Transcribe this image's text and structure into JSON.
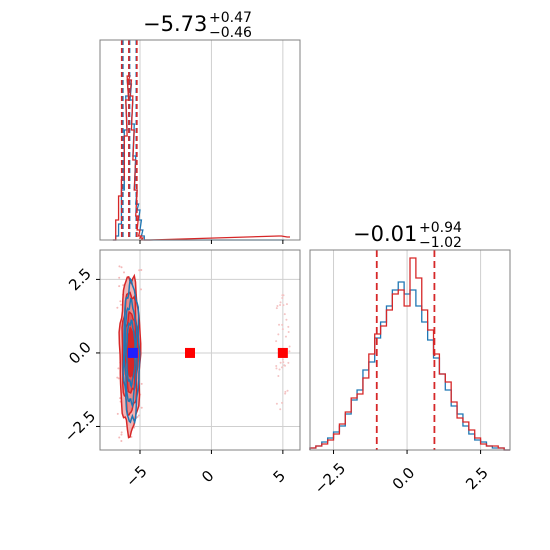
{
  "chart_data": [
    {
      "type": "histogram",
      "panel": "marginal-param-1",
      "title": {
        "median": "−5.73",
        "upper": "+0.47",
        "lower": "−0.46"
      },
      "xlim": [
        -7.8,
        6.2
      ],
      "ylim": [
        0,
        1
      ],
      "quantile_lines": {
        "blue": [
          -6.2,
          -5.73,
          -5.26
        ],
        "red": [
          -6.28,
          -5.78,
          -5.22
        ]
      },
      "series": [
        {
          "color": "#1f77b4",
          "x": [
            -6.8,
            -6.6,
            -6.4,
            -6.2,
            -6.0,
            -5.9,
            -5.8,
            -5.7,
            -5.6,
            -5.5,
            -5.4,
            -5.3,
            -5.2,
            -5.1,
            -5.0,
            -4.9,
            -4.8,
            -4.6,
            -4.4,
            5.0
          ],
          "counts": [
            0.0,
            0.02,
            0.08,
            0.25,
            0.55,
            0.72,
            0.8,
            0.78,
            0.7,
            0.58,
            0.42,
            0.25,
            0.18,
            0.15,
            0.1,
            0.05,
            0.02,
            0.0,
            0.0,
            0.0
          ]
        },
        {
          "color": "#d62728",
          "x": [
            -6.8,
            -6.6,
            -6.4,
            -6.2,
            -6.0,
            -5.9,
            -5.8,
            -5.7,
            -5.6,
            -5.5,
            -5.4,
            -5.3,
            -5.2,
            -5.1,
            -5.0,
            -4.9,
            -4.8,
            -4.6,
            -4.4,
            4.8,
            5.4
          ],
          "counts": [
            0.0,
            0.1,
            0.22,
            0.3,
            0.52,
            0.7,
            0.82,
            0.8,
            0.72,
            0.55,
            0.4,
            0.25,
            0.12,
            0.05,
            0.02,
            0.01,
            0.0,
            0.0,
            0.0,
            0.02,
            0.015
          ]
        }
      ]
    },
    {
      "type": "contour",
      "panel": "joint",
      "xlim": [
        -7.8,
        6.2
      ],
      "ylim": [
        -3.3,
        3.5
      ],
      "xticks": [
        -5,
        0,
        5
      ],
      "xtick_labels": [
        "−5",
        "0",
        "5"
      ],
      "yticks": [
        -2.5,
        0.0,
        2.5
      ],
      "ytick_labels": [
        "−2.5",
        "0.0",
        "2.5"
      ],
      "grid": true,
      "markers": [
        {
          "x": -5.5,
          "y": 0.0,
          "color": "#1f1fff"
        },
        {
          "x": -1.5,
          "y": 0.0,
          "color": "#ff0000"
        },
        {
          "x": 5.0,
          "y": 0.0,
          "color": "#ff0000"
        }
      ],
      "blue_contours": [
        {
          "cx": -5.6,
          "cy": 0.0,
          "rx": 0.55,
          "ry": 2.35
        },
        {
          "cx": -5.65,
          "cy": 0.0,
          "rx": 0.42,
          "ry": 1.7
        },
        {
          "cx": -5.65,
          "cy": 0.0,
          "rx": 0.3,
          "ry": 1.05
        }
      ],
      "red_contours": [
        {
          "cx": -5.7,
          "cy": -0.05,
          "rx": 0.72,
          "ry": 2.65,
          "fill": "#f2b5b5"
        },
        {
          "cx": -5.7,
          "cy": 0.0,
          "rx": 0.55,
          "ry": 2.05,
          "fill": "#e88c8c"
        },
        {
          "cx": -5.65,
          "cy": 0.0,
          "rx": 0.4,
          "ry": 1.35,
          "fill": "#df5a5a"
        },
        {
          "cx": -5.65,
          "cy": 0.0,
          "rx": 0.28,
          "ry": 0.8,
          "fill": "#d62728"
        }
      ]
    },
    {
      "type": "histogram",
      "panel": "marginal-param-2",
      "title": {
        "median": "−0.01",
        "upper": "+0.94",
        "lower": "−1.02"
      },
      "xlim": [
        -3.3,
        3.5
      ],
      "ylim": [
        0,
        1
      ],
      "xticks": [
        -2.5,
        0.0,
        2.5
      ],
      "xtick_labels": [
        "−2.5",
        "0.0",
        "2.5"
      ],
      "grid": true,
      "quantile_lines": {
        "red": [
          -1.03,
          0.93
        ]
      },
      "bins": [
        -3.3,
        -3.1,
        -2.9,
        -2.7,
        -2.5,
        -2.3,
        -2.1,
        -1.9,
        -1.7,
        -1.5,
        -1.3,
        -1.1,
        -0.9,
        -0.7,
        -0.5,
        -0.3,
        -0.1,
        0.1,
        0.3,
        0.5,
        0.7,
        0.9,
        1.1,
        1.3,
        1.5,
        1.7,
        1.9,
        2.1,
        2.3,
        2.5,
        2.7,
        2.9,
        3.1,
        3.3,
        3.5
      ],
      "series": [
        {
          "color": "#1f77b4",
          "counts": [
            0.01,
            0.02,
            0.04,
            0.06,
            0.09,
            0.12,
            0.18,
            0.25,
            0.3,
            0.4,
            0.44,
            0.56,
            0.64,
            0.72,
            0.8,
            0.84,
            0.78,
            0.8,
            0.72,
            0.64,
            0.55,
            0.46,
            0.38,
            0.3,
            0.22,
            0.18,
            0.12,
            0.08,
            0.05,
            0.04,
            0.02,
            0.01,
            0.01,
            0.0
          ]
        },
        {
          "color": "#d62728",
          "counts": [
            0.01,
            0.02,
            0.03,
            0.05,
            0.08,
            0.13,
            0.19,
            0.26,
            0.28,
            0.36,
            0.48,
            0.58,
            0.62,
            0.7,
            0.78,
            0.8,
            0.72,
            0.96,
            0.86,
            0.7,
            0.6,
            0.48,
            0.38,
            0.34,
            0.24,
            0.16,
            0.14,
            0.1,
            0.06,
            0.03,
            0.02,
            0.02,
            0.01,
            0.0
          ]
        }
      ]
    }
  ]
}
